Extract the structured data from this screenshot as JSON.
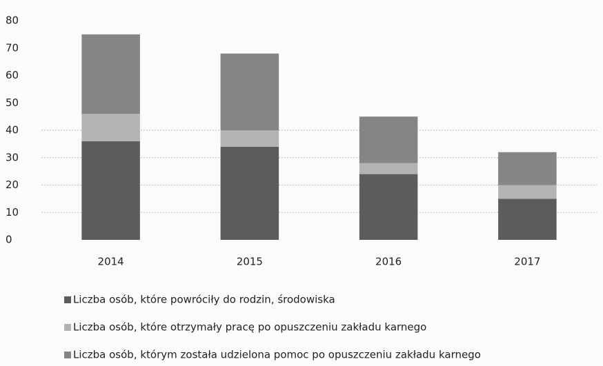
{
  "chart_data": {
    "type": "stacked_bar",
    "categories": [
      "2014",
      "2015",
      "2016",
      "2017"
    ],
    "series": [
      {
        "name": "Liczba osób, które powróciły do rodzin, środowiska",
        "color": "#5c5c5c",
        "values": [
          36,
          34,
          24,
          15
        ]
      },
      {
        "name": "Liczba osób, które otrzymały pracę po opuszczeniu zakładu karnego",
        "color": "#b3b3b3",
        "values": [
          10,
          6,
          4,
          5
        ]
      },
      {
        "name": "Liczba osób, którym została udzielona pomoc po opuszczeniu zakładu karnego",
        "color": "#858585",
        "values": [
          29,
          28,
          17,
          12
        ]
      }
    ],
    "ylim": [
      0,
      80
    ],
    "yticks": [
      0,
      10,
      20,
      30,
      40,
      50,
      60,
      70,
      80
    ],
    "grid": true,
    "legend": "bottom"
  }
}
